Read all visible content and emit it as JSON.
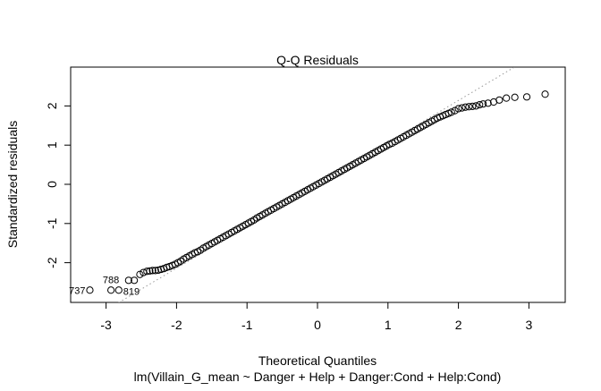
{
  "chart_data": {
    "type": "scatter",
    "title": "Q-Q Residuals",
    "xlabel": "Theoretical Quantiles",
    "ylabel": "Standardized residuals",
    "subtitle": "lm(Villain_G_mean ~ Danger + Help + Danger:Cond + Help:Cond)",
    "xlim": [
      -3.5,
      3.5
    ],
    "ylim": [
      -3.0,
      2.95
    ],
    "xticks": [
      -3,
      -2,
      -1,
      0,
      1,
      2,
      3
    ],
    "yticks": [
      -2,
      -1,
      0,
      1,
      2
    ],
    "grid": false,
    "reference_line": {
      "slope": 1.07,
      "intercept": 0.0,
      "style": "dotted",
      "color": "#999999"
    },
    "labels": [
      {
        "text": "737",
        "x": -3.23,
        "y": -2.7
      },
      {
        "text": "788",
        "x": -2.93,
        "y": -2.7
      },
      {
        "text": "819",
        "x": -2.82,
        "y": -2.7
      }
    ],
    "points": [
      [
        -3.23,
        -2.7
      ],
      [
        -2.93,
        -2.7
      ],
      [
        -2.82,
        -2.7
      ],
      [
        -2.68,
        -2.45
      ],
      [
        -2.6,
        -2.45
      ],
      [
        -2.52,
        -2.3
      ],
      [
        -2.47,
        -2.25
      ],
      [
        -2.42,
        -2.22
      ],
      [
        -2.38,
        -2.21
      ],
      [
        -2.34,
        -2.2
      ],
      [
        -2.3,
        -2.2
      ],
      [
        -2.26,
        -2.19
      ],
      [
        -2.22,
        -2.17
      ],
      [
        -2.18,
        -2.15
      ],
      [
        -2.14,
        -2.12
      ],
      [
        -2.1,
        -2.1
      ],
      [
        -2.06,
        -2.07
      ],
      [
        -2.02,
        -2.04
      ],
      [
        -1.98,
        -2.0
      ],
      [
        -1.94,
        -1.96
      ],
      [
        -1.9,
        -1.91
      ],
      [
        -1.86,
        -1.87
      ],
      [
        -1.82,
        -1.83
      ],
      [
        -1.78,
        -1.79
      ],
      [
        -1.74,
        -1.75
      ],
      [
        -1.7,
        -1.72
      ],
      [
        -1.66,
        -1.68
      ],
      [
        -1.62,
        -1.63
      ],
      [
        -1.58,
        -1.59
      ],
      [
        -1.54,
        -1.55
      ],
      [
        -1.5,
        -1.51
      ],
      [
        -1.46,
        -1.47
      ],
      [
        -1.42,
        -1.43
      ],
      [
        -1.38,
        -1.39
      ],
      [
        -1.34,
        -1.35
      ],
      [
        -1.3,
        -1.31
      ],
      [
        -1.26,
        -1.27
      ],
      [
        -1.22,
        -1.23
      ],
      [
        -1.18,
        -1.19
      ],
      [
        -1.14,
        -1.15
      ],
      [
        -1.1,
        -1.11
      ],
      [
        -1.06,
        -1.07
      ],
      [
        -1.02,
        -1.03
      ],
      [
        -0.98,
        -0.99
      ],
      [
        -0.94,
        -0.95
      ],
      [
        -0.9,
        -0.91
      ],
      [
        -0.86,
        -0.86
      ],
      [
        -0.82,
        -0.82
      ],
      [
        -0.78,
        -0.78
      ],
      [
        -0.74,
        -0.74
      ],
      [
        -0.7,
        -0.7
      ],
      [
        -0.66,
        -0.66
      ],
      [
        -0.62,
        -0.62
      ],
      [
        -0.58,
        -0.58
      ],
      [
        -0.54,
        -0.54
      ],
      [
        -0.5,
        -0.5
      ],
      [
        -0.46,
        -0.46
      ],
      [
        -0.42,
        -0.42
      ],
      [
        -0.38,
        -0.38
      ],
      [
        -0.34,
        -0.34
      ],
      [
        -0.3,
        -0.3
      ],
      [
        -0.26,
        -0.26
      ],
      [
        -0.22,
        -0.22
      ],
      [
        -0.18,
        -0.18
      ],
      [
        -0.14,
        -0.14
      ],
      [
        -0.1,
        -0.1
      ],
      [
        -0.06,
        -0.06
      ],
      [
        -0.02,
        -0.02
      ],
      [
        0.02,
        0.02
      ],
      [
        0.06,
        0.06
      ],
      [
        0.1,
        0.1
      ],
      [
        0.14,
        0.14
      ],
      [
        0.18,
        0.18
      ],
      [
        0.22,
        0.22
      ],
      [
        0.26,
        0.26
      ],
      [
        0.3,
        0.3
      ],
      [
        0.34,
        0.34
      ],
      [
        0.38,
        0.38
      ],
      [
        0.42,
        0.42
      ],
      [
        0.46,
        0.46
      ],
      [
        0.5,
        0.5
      ],
      [
        0.54,
        0.54
      ],
      [
        0.58,
        0.58
      ],
      [
        0.62,
        0.62
      ],
      [
        0.66,
        0.66
      ],
      [
        0.7,
        0.7
      ],
      [
        0.74,
        0.74
      ],
      [
        0.78,
        0.78
      ],
      [
        0.82,
        0.82
      ],
      [
        0.86,
        0.86
      ],
      [
        0.9,
        0.9
      ],
      [
        0.94,
        0.94
      ],
      [
        0.98,
        0.98
      ],
      [
        1.02,
        1.02
      ],
      [
        1.06,
        1.05
      ],
      [
        1.1,
        1.09
      ],
      [
        1.14,
        1.13
      ],
      [
        1.18,
        1.17
      ],
      [
        1.22,
        1.21
      ],
      [
        1.26,
        1.25
      ],
      [
        1.3,
        1.29
      ],
      [
        1.34,
        1.33
      ],
      [
        1.38,
        1.37
      ],
      [
        1.42,
        1.41
      ],
      [
        1.46,
        1.45
      ],
      [
        1.5,
        1.49
      ],
      [
        1.54,
        1.53
      ],
      [
        1.58,
        1.57
      ],
      [
        1.62,
        1.61
      ],
      [
        1.66,
        1.65
      ],
      [
        1.7,
        1.69
      ],
      [
        1.74,
        1.72
      ],
      [
        1.78,
        1.75
      ],
      [
        1.82,
        1.78
      ],
      [
        1.86,
        1.81
      ],
      [
        1.9,
        1.84
      ],
      [
        1.95,
        1.88
      ],
      [
        2.0,
        1.93
      ],
      [
        2.05,
        1.95
      ],
      [
        2.1,
        1.97
      ],
      [
        2.15,
        1.98
      ],
      [
        2.2,
        1.99
      ],
      [
        2.25,
        2.0
      ],
      [
        2.3,
        2.03
      ],
      [
        2.35,
        2.05
      ],
      [
        2.42,
        2.07
      ],
      [
        2.5,
        2.1
      ],
      [
        2.58,
        2.15
      ],
      [
        2.68,
        2.2
      ],
      [
        2.8,
        2.22
      ],
      [
        2.97,
        2.23
      ],
      [
        3.23,
        2.3
      ]
    ]
  }
}
